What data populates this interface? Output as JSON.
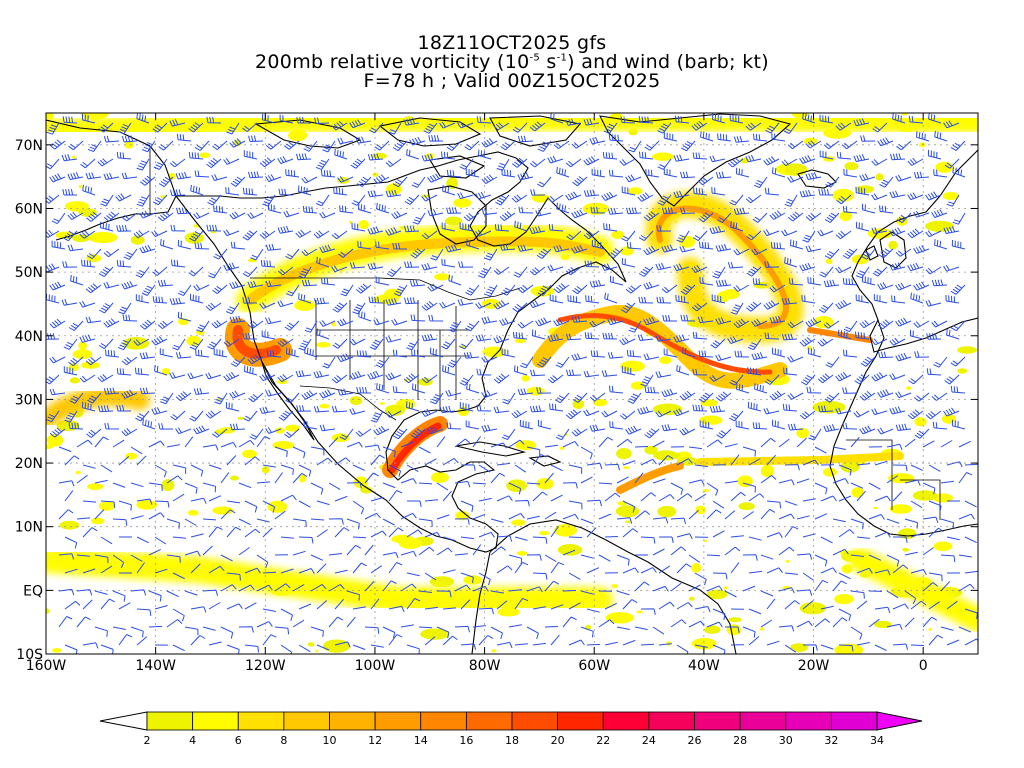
{
  "title": {
    "line1": "18Z11OCT2025 gfs",
    "line2_pre": "200mb relative vorticity (10",
    "line2_exp1": "-5",
    "line2_mid": " s",
    "line2_exp2": "-1",
    "line2_post": ") and wind (barb; kt)",
    "line3": "F=78 h ; Valid 00Z15OCT2025"
  },
  "map": {
    "lat_labels": [
      "70N",
      "60N",
      "50N",
      "40N",
      "30N",
      "20N",
      "10N",
      "EQ",
      "10S"
    ],
    "lon_labels": [
      "160W",
      "140W",
      "120W",
      "100W",
      "80W",
      "60W",
      "40W",
      "20W",
      "0"
    ],
    "lat_values": [
      70,
      60,
      50,
      40,
      30,
      20,
      10,
      0,
      -10
    ],
    "lon_values": [
      -160,
      -140,
      -120,
      -100,
      -80,
      -60,
      -40,
      -20,
      0
    ],
    "extent": {
      "lon_min": -160,
      "lon_max": 10,
      "lat_min": -10,
      "lat_max": 75
    },
    "barb_color": "#2a4de6",
    "coast_color": "#000000"
  },
  "colorbar": {
    "labels": [
      "2",
      "4",
      "6",
      "8",
      "10",
      "12",
      "14",
      "16",
      "18",
      "20",
      "22",
      "24",
      "26",
      "28",
      "30",
      "32",
      "34"
    ],
    "colors": [
      "#eef300",
      "#fffc00",
      "#ffe000",
      "#ffc800",
      "#ffb200",
      "#ff9c00",
      "#ff8600",
      "#ff6a00",
      "#ff4c00",
      "#ff2600",
      "#ff0036",
      "#f5005a",
      "#f0007c",
      "#ea0098",
      "#e600b8",
      "#e000d4"
    ],
    "under_color": "#ffffff",
    "over_color": "#f000f8"
  }
}
